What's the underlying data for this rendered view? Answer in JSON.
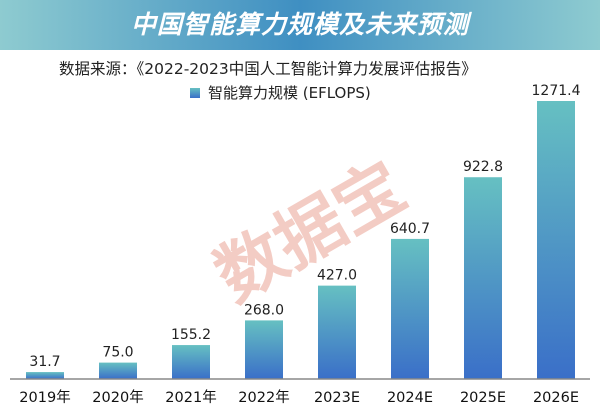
{
  "chart_data": {
    "type": "bar",
    "title": "中国智能算力规模及未来预测",
    "source": "数据来源：《2022-2023中国人工智能计算力发展评估报告》",
    "legend": [
      "智能算力规模 (EFLOPS)"
    ],
    "categories": [
      "2019年",
      "2020年",
      "2021年",
      "2022年",
      "2023E",
      "2024E",
      "2025E",
      "2026E"
    ],
    "series": [
      {
        "name": "智能算力规模 (EFLOPS)",
        "values": [
          31.7,
          75.0,
          155.2,
          268.0,
          427.0,
          640.7,
          922.8,
          1271.4
        ],
        "labels": [
          "31.7",
          "75.0",
          "155.2",
          "268.0",
          "427.0",
          "640.7",
          "922.8",
          "1271.4"
        ]
      }
    ],
    "xlabel": "",
    "ylabel": "",
    "ylim": [
      0,
      1271.4
    ],
    "grid": false,
    "legend_position": "top-left"
  },
  "watermark": "数据宝",
  "colors": {
    "bar_top": "#66c0c2",
    "bar_bottom": "#3a6fc8",
    "banner": "#3f8fc2",
    "axis": "#888888"
  }
}
